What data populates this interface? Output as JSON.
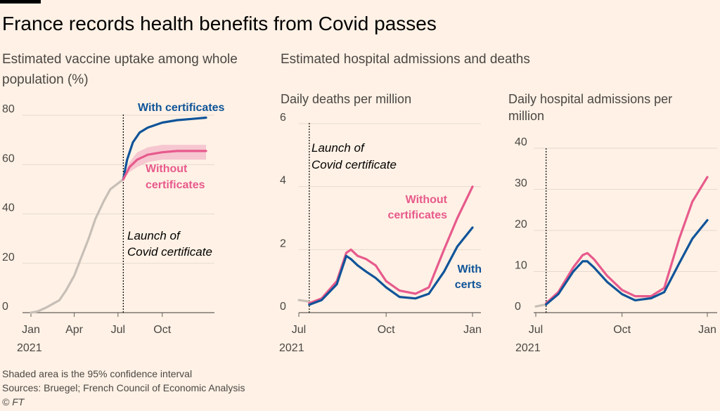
{
  "title": "France records health benefits from Covid passes",
  "left_subtitle": "Estimated vaccine uptake among whole population (%)",
  "right_subtitle": "Estimated hospital admissions and deaths",
  "colors": {
    "with": "#0f5499",
    "without": "#e75a8c",
    "pre": "#c7bfb7",
    "band": "#f5bfcd",
    "background": "#fff1e5"
  },
  "footer": {
    "note": "Shaded area is the 95% confidence interval",
    "sources": "Sources: Bruegel; French Council of Economic Analysis",
    "credit": "© FT"
  },
  "chart_data": [
    {
      "type": "line",
      "title": "Estimated vaccine uptake among whole population (%)",
      "x_ticks": [
        "Jan",
        "Apr",
        "Jul",
        "Oct"
      ],
      "x_year": "2021",
      "y_ticks": [
        0,
        20,
        40,
        60,
        80
      ],
      "ylim": [
        0,
        80
      ],
      "event_label": [
        "Launch of",
        "Covid certificate"
      ],
      "series": [
        {
          "name": "Before launch",
          "points": [
            [
              "2021-01-01",
              0
            ],
            [
              "2021-01-15",
              0.5
            ],
            [
              "2021-02-01",
              2
            ],
            [
              "2021-02-15",
              3.5
            ],
            [
              "2021-03-01",
              5
            ],
            [
              "2021-03-15",
              9
            ],
            [
              "2021-04-01",
              15
            ],
            [
              "2021-04-15",
              22
            ],
            [
              "2021-05-01",
              30
            ],
            [
              "2021-05-15",
              38
            ],
            [
              "2021-06-01",
              45
            ],
            [
              "2021-06-15",
              50
            ],
            [
              "2021-07-12",
              54
            ]
          ]
        },
        {
          "name": "With certificates",
          "points": [
            [
              "2021-07-12",
              54
            ],
            [
              "2021-07-20",
              62
            ],
            [
              "2021-08-01",
              69
            ],
            [
              "2021-08-15",
              73
            ],
            [
              "2021-09-01",
              75
            ],
            [
              "2021-10-01",
              77
            ],
            [
              "2021-11-01",
              78
            ],
            [
              "2021-12-01",
              78.5
            ],
            [
              "2021-12-31",
              79
            ]
          ]
        },
        {
          "name": "Without certificates",
          "points": [
            [
              "2021-07-12",
              54
            ],
            [
              "2021-07-25",
              59
            ],
            [
              "2021-08-10",
              62
            ],
            [
              "2021-09-01",
              64
            ],
            [
              "2021-10-01",
              65
            ],
            [
              "2021-11-01",
              65.5
            ],
            [
              "2021-12-31",
              65.5
            ]
          ],
          "band": [
            [
              54,
              54
            ],
            [
              57,
              61
            ],
            [
              59,
              65
            ],
            [
              61,
              67
            ],
            [
              62,
              68
            ],
            [
              62,
              68
            ],
            [
              62,
              68
            ]
          ]
        }
      ],
      "labels": {
        "with": "With certificates",
        "without": [
          "Without",
          "certificates"
        ]
      }
    },
    {
      "type": "line",
      "title": "Daily deaths per million",
      "x_ticks": [
        "Jul",
        "Oct",
        "Jan"
      ],
      "x_year": "2021",
      "y_ticks": [
        0,
        2,
        4,
        6
      ],
      "ylim": [
        0,
        6
      ],
      "event_label": [
        "Launch of",
        "Covid certificate"
      ],
      "series": [
        {
          "name": "Before launch",
          "points": [
            [
              "2021-07-01",
              0.4
            ],
            [
              "2021-07-12",
              0.35
            ]
          ]
        },
        {
          "name": "Without certificates",
          "points": [
            [
              "2021-07-12",
              0.3
            ],
            [
              "2021-07-25",
              0.45
            ],
            [
              "2021-08-10",
              1.0
            ],
            [
              "2021-08-20",
              1.9
            ],
            [
              "2021-08-25",
              2.0
            ],
            [
              "2021-09-01",
              1.8
            ],
            [
              "2021-09-10",
              1.7
            ],
            [
              "2021-09-20",
              1.5
            ],
            [
              "2021-10-01",
              1.0
            ],
            [
              "2021-10-15",
              0.7
            ],
            [
              "2021-11-01",
              0.6
            ],
            [
              "2021-11-15",
              0.8
            ],
            [
              "2021-12-01",
              2.0
            ],
            [
              "2021-12-15",
              3.0
            ],
            [
              "2021-12-31",
              4.0
            ]
          ]
        },
        {
          "name": "With certificates",
          "points": [
            [
              "2021-07-12",
              0.25
            ],
            [
              "2021-07-25",
              0.4
            ],
            [
              "2021-08-10",
              0.9
            ],
            [
              "2021-08-20",
              1.8
            ],
            [
              "2021-08-25",
              1.7
            ],
            [
              "2021-09-01",
              1.5
            ],
            [
              "2021-09-10",
              1.3
            ],
            [
              "2021-09-20",
              1.1
            ],
            [
              "2021-10-01",
              0.8
            ],
            [
              "2021-10-15",
              0.5
            ],
            [
              "2021-11-01",
              0.45
            ],
            [
              "2021-11-15",
              0.6
            ],
            [
              "2021-12-01",
              1.3
            ],
            [
              "2021-12-15",
              2.1
            ],
            [
              "2021-12-31",
              2.7
            ]
          ]
        }
      ],
      "labels": {
        "without": [
          "Without",
          "certificates"
        ],
        "with": [
          "With",
          "certs"
        ]
      }
    },
    {
      "type": "line",
      "title": "Daily hospital admissions per million",
      "x_ticks": [
        "Jul",
        "Oct",
        "Jan"
      ],
      "x_year": "2021",
      "y_ticks": [
        0,
        10,
        20,
        30,
        40
      ],
      "ylim": [
        0,
        40
      ],
      "series": [
        {
          "name": "Before launch",
          "points": [
            [
              "2021-07-01",
              1.5
            ],
            [
              "2021-07-12",
              2
            ]
          ]
        },
        {
          "name": "Without certificates",
          "points": [
            [
              "2021-07-12",
              2.3
            ],
            [
              "2021-07-25",
              5
            ],
            [
              "2021-08-10",
              11
            ],
            [
              "2021-08-20",
              14
            ],
            [
              "2021-08-25",
              14.5
            ],
            [
              "2021-09-01",
              13
            ],
            [
              "2021-09-15",
              9
            ],
            [
              "2021-10-01",
              5.5
            ],
            [
              "2021-10-15",
              4
            ],
            [
              "2021-11-01",
              4
            ],
            [
              "2021-11-15",
              6
            ],
            [
              "2021-12-01",
              18
            ],
            [
              "2021-12-15",
              27
            ],
            [
              "2021-12-31",
              33
            ]
          ]
        },
        {
          "name": "With certificates",
          "points": [
            [
              "2021-07-12",
              2
            ],
            [
              "2021-07-25",
              4.5
            ],
            [
              "2021-08-10",
              10
            ],
            [
              "2021-08-20",
              12.5
            ],
            [
              "2021-08-25",
              12.5
            ],
            [
              "2021-09-01",
              11
            ],
            [
              "2021-09-15",
              7.5
            ],
            [
              "2021-10-01",
              4.5
            ],
            [
              "2021-10-15",
              3
            ],
            [
              "2021-11-01",
              3.5
            ],
            [
              "2021-11-15",
              5
            ],
            [
              "2021-12-01",
              12
            ],
            [
              "2021-12-15",
              18
            ],
            [
              "2021-12-31",
              22.5
            ]
          ]
        }
      ]
    }
  ]
}
